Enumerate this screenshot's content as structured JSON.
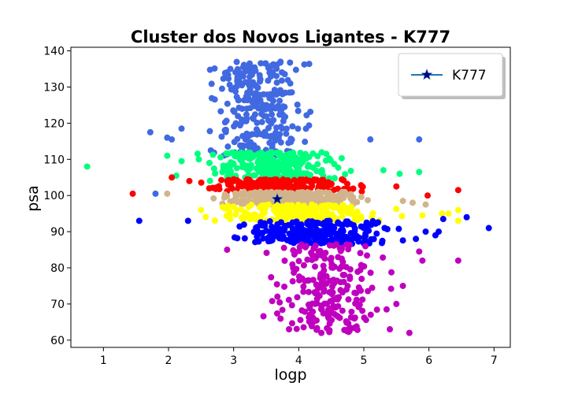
{
  "chart_data": {
    "type": "scatter",
    "title": "Cluster dos Novos Ligantes - K777",
    "xlabel": "logp",
    "ylabel": "psa",
    "xlim": [
      0.5,
      7.25
    ],
    "ylim": [
      58,
      141
    ],
    "xticks": [
      1,
      2,
      3,
      4,
      5,
      6,
      7
    ],
    "yticks": [
      60,
      70,
      80,
      90,
      100,
      110,
      120,
      130,
      140
    ],
    "grid": false,
    "legend": {
      "position": "top-right",
      "entries": [
        "K777"
      ]
    },
    "highlight": {
      "name": "K777",
      "x": 3.67,
      "y": 99,
      "marker": "star",
      "color": "#000080"
    },
    "clusters": [
      {
        "color": "#4169e1",
        "y_range": [
          111,
          137
        ],
        "x_center": 3.4,
        "x_spread": 0.55,
        "count": 260,
        "outliers": [
          [
            3.72,
            137
          ],
          [
            2.95,
            135
          ],
          [
            3.87,
            131
          ],
          [
            5.85,
            115.5
          ],
          [
            5.1,
            115.5
          ],
          [
            1.72,
            117.5
          ],
          [
            1.98,
            116
          ],
          [
            2.05,
            115.5
          ],
          [
            1.8,
            100.5
          ],
          [
            2.2,
            118.5
          ]
        ]
      },
      {
        "color": "#00ff7f",
        "y_range": [
          104,
          112
        ],
        "x_center": 3.6,
        "x_spread": 0.75,
        "count": 260,
        "outliers": [
          [
            0.75,
            108
          ],
          [
            1.98,
            111
          ],
          [
            2.12,
            105.5
          ],
          [
            5.55,
            106
          ],
          [
            5.85,
            106.5
          ],
          [
            5.3,
            107
          ],
          [
            2.2,
            109.5
          ]
        ]
      },
      {
        "color": "#ff0000",
        "y_range": [
          101,
          104.5
        ],
        "x_center": 3.7,
        "x_spread": 0.85,
        "count": 230,
        "outliers": [
          [
            1.45,
            100.5
          ],
          [
            2.05,
            105
          ],
          [
            2.32,
            104
          ],
          [
            5.98,
            100
          ],
          [
            6.45,
            101.5
          ],
          [
            5.5,
            102.5
          ]
        ]
      },
      {
        "color": "#d2b48c",
        "y_range": [
          97.5,
          101
        ],
        "x_center": 3.9,
        "x_spread": 0.85,
        "count": 230,
        "outliers": [
          [
            1.98,
            100.5
          ],
          [
            5.75,
            98
          ],
          [
            5.95,
            97.5
          ],
          [
            5.6,
            98.5
          ]
        ]
      },
      {
        "color": "#ffff00",
        "y_range": [
          93,
          97.5
        ],
        "x_center": 4.0,
        "x_spread": 0.9,
        "count": 230,
        "outliers": [
          [
            2.5,
            96
          ],
          [
            6.3,
            95
          ],
          [
            6.45,
            96
          ],
          [
            6.45,
            93
          ],
          [
            5.9,
            94.5
          ],
          [
            6.2,
            95
          ]
        ]
      },
      {
        "color": "#0000ff",
        "y_range": [
          86.5,
          93
        ],
        "x_center": 4.3,
        "x_spread": 0.85,
        "count": 260,
        "outliers": [
          [
            1.55,
            93
          ],
          [
            2.3,
            93
          ],
          [
            6.92,
            91
          ],
          [
            6.15,
            90
          ],
          [
            6.22,
            93.5
          ],
          [
            6.58,
            94
          ],
          [
            6.1,
            89
          ],
          [
            5.8,
            88
          ],
          [
            5.95,
            90
          ]
        ]
      },
      {
        "color": "#bf00bf",
        "y_range": [
          62,
          86.5
        ],
        "x_center": 4.4,
        "x_spread": 0.6,
        "count": 230,
        "outliers": [
          [
            5.7,
            62
          ],
          [
            5.4,
            63
          ],
          [
            6.45,
            82
          ],
          [
            5.85,
            84.5
          ],
          [
            5.9,
            82
          ],
          [
            5.35,
            68.5
          ],
          [
            5.5,
            70
          ],
          [
            4.5,
            68.5
          ],
          [
            2.9,
            85
          ],
          [
            5.6,
            75
          ]
        ]
      }
    ]
  }
}
